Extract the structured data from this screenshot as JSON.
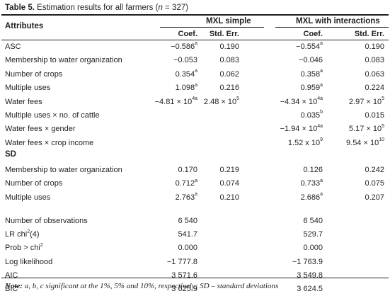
{
  "caption": {
    "label": "Table 5.",
    "text": "Estimation results for all farmers (",
    "n_var": "n",
    "n_value": " = 327)"
  },
  "header": {
    "attributes": "Attributes",
    "group1": "MXL simple",
    "group2": "MXL with interactions",
    "coef": "Coef.",
    "std_err": "Std. Err."
  },
  "rows_main": [
    {
      "label": "ASC",
      "c1": "−0.586",
      "c1s": "a",
      "c2": "0.190",
      "c2s": "",
      "c3": "−0.554",
      "c3s": "a",
      "c4": "0.190",
      "c4s": ""
    },
    {
      "label": "Membership to water organization",
      "c1": "−0.053",
      "c1s": "",
      "c2": "0.083",
      "c2s": "",
      "c3": "−0.046",
      "c3s": "",
      "c4": "0.083",
      "c4s": ""
    },
    {
      "label": "Number of crops",
      "c1": "0.354",
      "c1s": "a",
      "c2": "0.062",
      "c2s": "",
      "c3": "0.358",
      "c3s": "a",
      "c4": "0.063",
      "c4s": ""
    },
    {
      "label": "Multiple uses",
      "c1": "1.098",
      "c1s": "a",
      "c2": "0.216",
      "c2s": "",
      "c3": "0.959",
      "c3s": "a",
      "c4": "0.224",
      "c4s": ""
    },
    {
      "label": "Water fees",
      "c1": "−4.81 × 10",
      "c1s": "4a",
      "c2": "2.48 × 10",
      "c2s": "5",
      "c3": "−4.34 × 10",
      "c3s": "4a",
      "c4": "2.97 × 10",
      "c4s": "5"
    },
    {
      "label": "Multiple uses × no. of cattle",
      "c1": "",
      "c1s": "",
      "c2": "",
      "c2s": "",
      "c3": "0.035",
      "c3s": "b",
      "c4": "0.015",
      "c4s": ""
    },
    {
      "label": "Water fees × gender",
      "c1": "",
      "c1s": "",
      "c2": "",
      "c2s": "",
      "c3": "−1.94 × 10",
      "c3s": "4a",
      "c4": "5.17 × 10",
      "c4s": "5"
    },
    {
      "label": "Water fees × crop income",
      "c1": "",
      "c1s": "",
      "c2": "",
      "c2s": "",
      "c3": "1.52 x 10",
      "c3s": "9",
      "c4": "9.54 × 10",
      "c4s": "10"
    }
  ],
  "section_sd": "SD",
  "rows_sd": [
    {
      "label": "Membership to water organization",
      "c1": "0.170",
      "c1s": "",
      "c2": "0.219",
      "c2s": "",
      "c3": "0.126",
      "c3s": "",
      "c4": "0.242",
      "c4s": ""
    },
    {
      "label": "Number of crops",
      "c1": "0.712",
      "c1s": "a",
      "c2": "0.074",
      "c2s": "",
      "c3": "0.733",
      "c3s": "a",
      "c4": "0.075",
      "c4s": ""
    },
    {
      "label": "Multiple uses",
      "c1": "2.763",
      "c1s": "a",
      "c2": "0.210",
      "c2s": "",
      "c3": "2.686",
      "c3s": "a",
      "c4": "0.207",
      "c4s": ""
    }
  ],
  "rows_stats": [
    {
      "label": "Number of observations",
      "label_sup": "",
      "label_end": "",
      "c1": "6 540",
      "c3": "6 540"
    },
    {
      "label": "LR chi",
      "label_sup": "2",
      "label_end": "(4)",
      "c1": "541.7",
      "c3": "529.7"
    },
    {
      "label": "Prob > chi",
      "label_sup": "2",
      "label_end": "",
      "c1": "0.000",
      "c3": "0.000"
    },
    {
      "label": "Log likelihood",
      "label_sup": "",
      "label_end": "",
      "c1": "−1 777.8",
      "c3": "−1 763.9"
    },
    {
      "label": "AIC",
      "label_sup": "",
      "label_end": "",
      "c1": "3 571.6",
      "c3": "3 549.8"
    },
    {
      "label": "BIC",
      "label_sup": "",
      "label_end": "",
      "c1": "3 625.9",
      "c3": "3 624.5"
    }
  ],
  "note": {
    "prefix": "Note:",
    "text": " a, b, c significant at the 1%, 5% and 10%, respectively; SD – standard deviations"
  }
}
